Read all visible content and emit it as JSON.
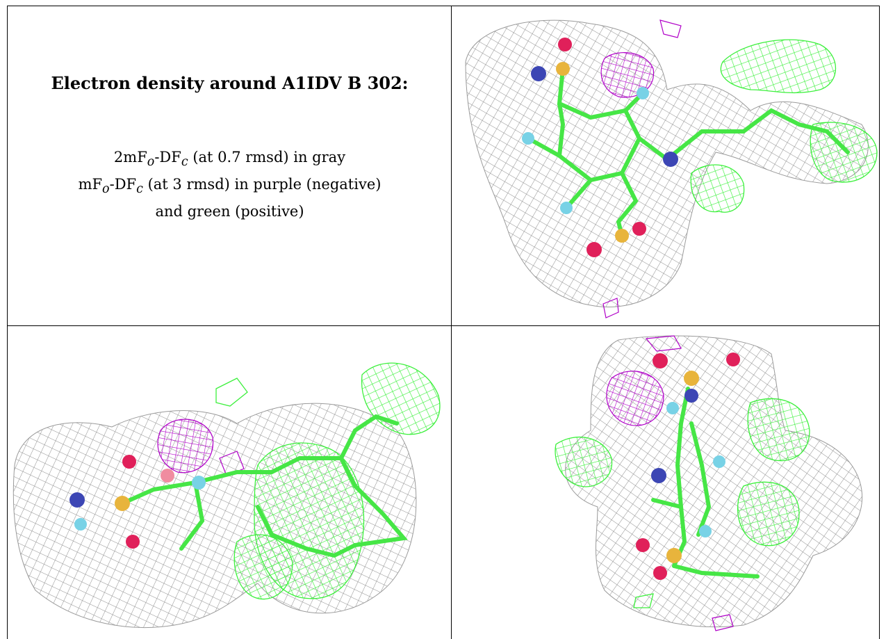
{
  "caption": {
    "title": "Electron density around A1IDV B 302:",
    "line1": {
      "pre": "2mF",
      "sub1": "o",
      "mid": "-DF",
      "sub2": "c",
      "post": " (at 0.7 rmsd) in gray"
    },
    "line2": {
      "pre": "mF",
      "sub1": "o",
      "mid": "-DF",
      "sub2": "c",
      "post": " (at 3 rmsd) in purple (negative)"
    },
    "line3": "and green (positive)"
  },
  "colors": {
    "mesh_2fo": "#8c8c8c",
    "mesh_positive": "#3cf03c",
    "mesh_negative": "#b000c8",
    "carbon": "#46e646",
    "sulfur": "#e8b43c",
    "oxygen": "#e0205a",
    "nitrogen": "#3c46b4",
    "fluorine": "#78d2e6",
    "border": "#000000"
  },
  "panels": [
    {
      "view": "top-right"
    },
    {
      "view": "bottom-left"
    },
    {
      "view": "bottom-right"
    }
  ]
}
